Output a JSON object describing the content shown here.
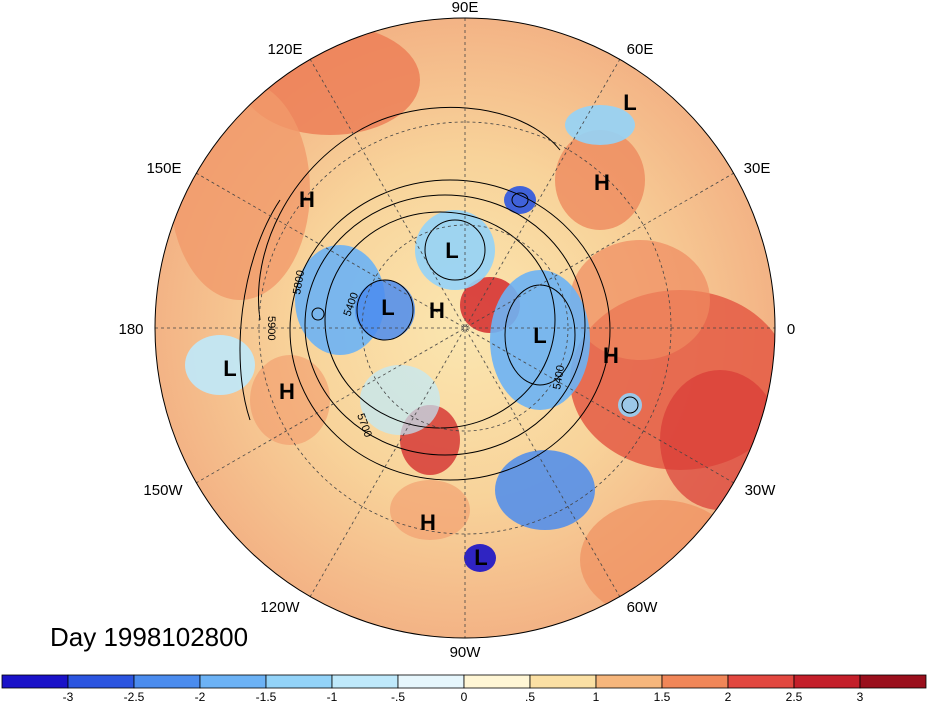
{
  "title": "Day 1998102800",
  "longitude_labels": [
    "90E",
    "60E",
    "30E",
    "0",
    "30W",
    "60W",
    "90W",
    "120W",
    "150W",
    "180",
    "150E",
    "120E"
  ],
  "pressure_systems": [
    {
      "label": "L"
    },
    {
      "label": "H"
    },
    {
      "label": "H"
    },
    {
      "label": "L"
    },
    {
      "label": "L"
    },
    {
      "label": "H"
    },
    {
      "label": "L"
    },
    {
      "label": "H"
    },
    {
      "label": "L"
    },
    {
      "label": "H"
    },
    {
      "label": "H"
    },
    {
      "label": "L"
    }
  ],
  "contour_labels": [
    "5800",
    "5400",
    "5900",
    "5700",
    "5400"
  ],
  "colorbar": {
    "labels": [
      "-3",
      "-2.5",
      "-2",
      "-1.5",
      "-1",
      "-.5",
      "0",
      ".5",
      "1",
      "1.5",
      "2",
      "2.5",
      "3"
    ],
    "colors": [
      "#1a12c8",
      "#2b55e0",
      "#4b8cee",
      "#6cb2f5",
      "#93d3f8",
      "#bfe9fb",
      "#e6f6fc",
      "#fff6d5",
      "#fbe0a4",
      "#f6b67c",
      "#f08658",
      "#e2473f",
      "#c41f2a",
      "#9a0f1c"
    ]
  }
}
